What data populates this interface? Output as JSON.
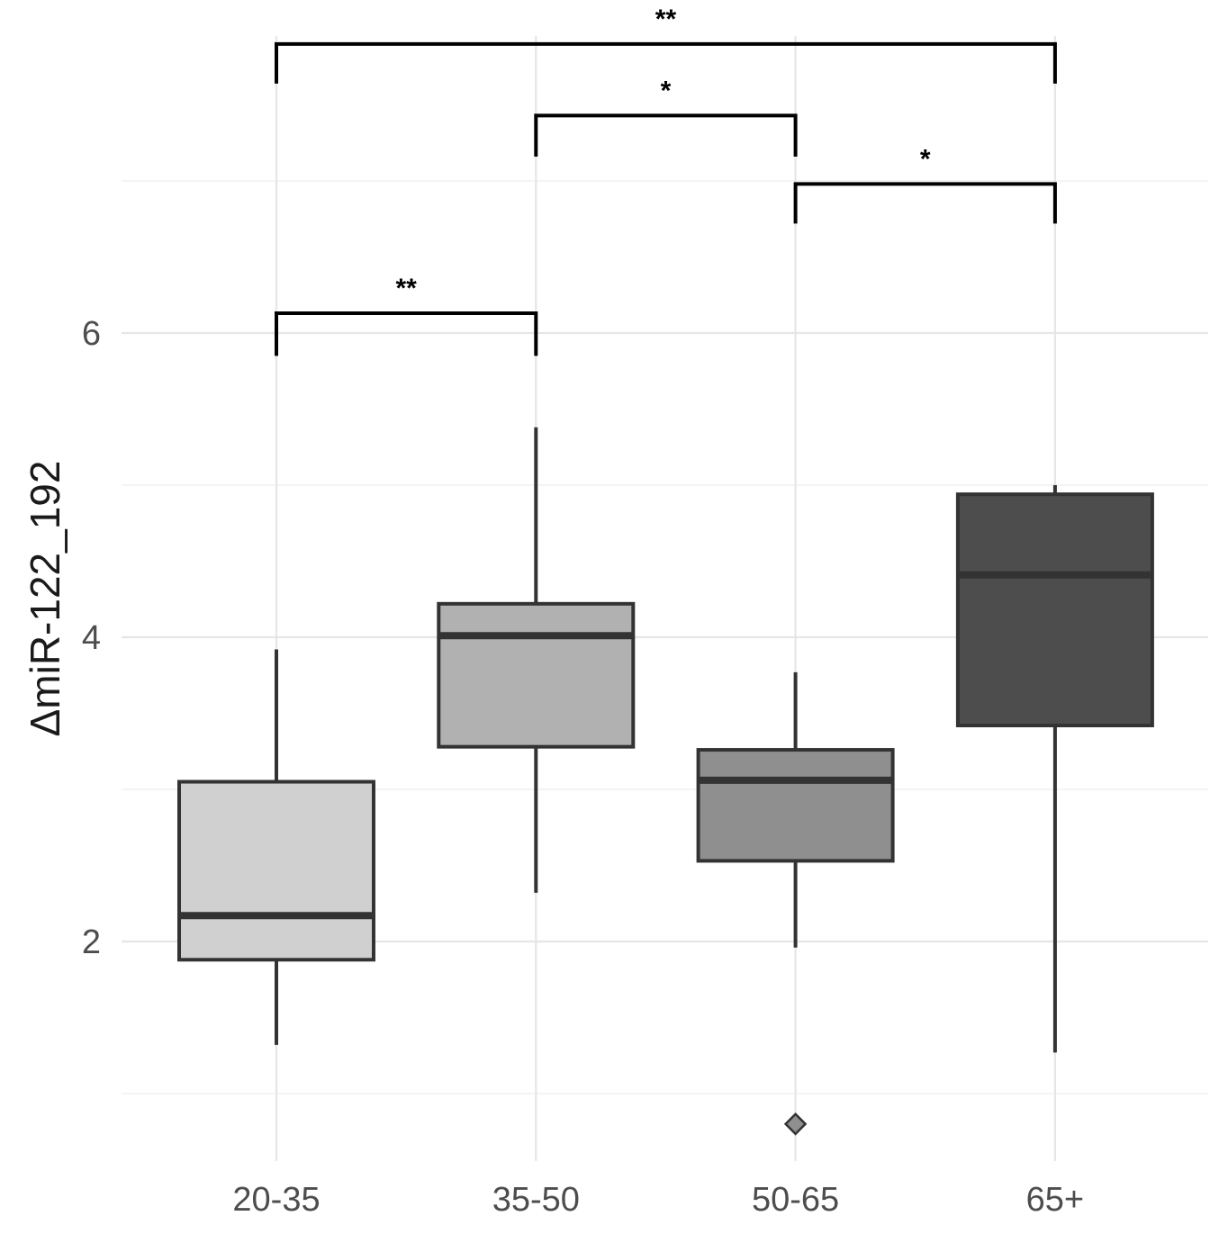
{
  "chart_data": {
    "type": "box",
    "title": "",
    "xlabel": "",
    "ylabel": "ΔmiR-122_192",
    "categories": [
      "20-35",
      "35-50",
      "50-65",
      "65+"
    ],
    "y_ticks": [
      2,
      4,
      6
    ],
    "ylim": [
      0.6,
      7.9
    ],
    "grid": true,
    "boxes": [
      {
        "category": "20-35",
        "whisker_low": 1.32,
        "q1": 1.88,
        "median": 2.17,
        "q3": 3.05,
        "whisker_high": 3.92,
        "fill": "#cfd0cf",
        "outliers": []
      },
      {
        "category": "35-50",
        "whisker_low": 2.32,
        "q1": 3.28,
        "median": 4.01,
        "q3": 4.22,
        "whisker_high": 5.38,
        "fill": "#b0b1b0",
        "outliers": []
      },
      {
        "category": "50-65",
        "whisker_low": 1.96,
        "q1": 2.53,
        "median": 3.06,
        "q3": 3.26,
        "whisker_high": 3.77,
        "fill": "#8e8f8e",
        "outliers": [
          0.8
        ]
      },
      {
        "category": "65+",
        "whisker_low": 1.27,
        "q1": 3.42,
        "median": 4.41,
        "q3": 4.94,
        "whisker_high": 5.0,
        "fill": "#4d4d4d",
        "outliers": []
      }
    ],
    "significance": [
      {
        "from": "20-35",
        "to": "35-50",
        "y": 6.13,
        "tip_low": 5.85,
        "label": "**"
      },
      {
        "from": "50-65",
        "to": "65+",
        "y": 6.98,
        "tip_low": 6.72,
        "label": "*"
      },
      {
        "from": "35-50",
        "to": "50-65",
        "y": 7.43,
        "tip_low": 7.16,
        "label": "*"
      },
      {
        "from": "20-35",
        "to": "65+",
        "y": 7.9,
        "tip_low": 7.64,
        "label": "**"
      }
    ]
  }
}
